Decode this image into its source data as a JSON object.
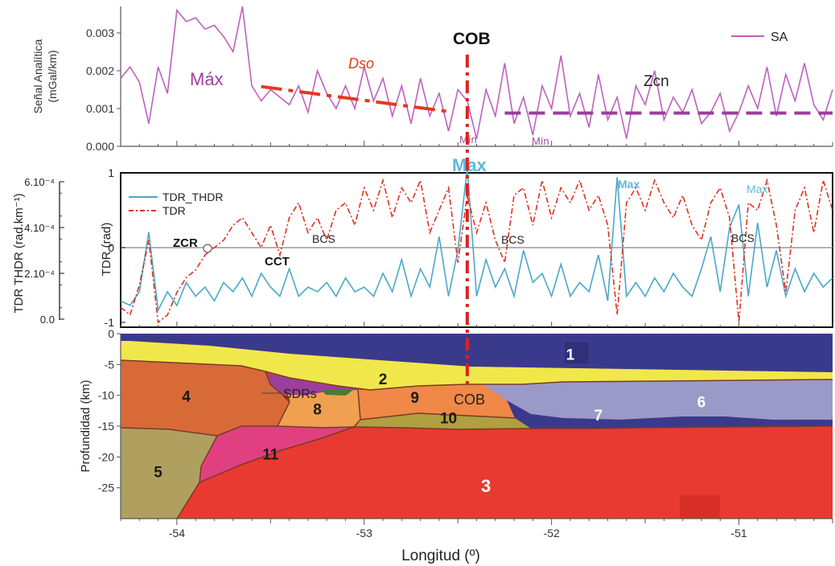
{
  "figure": {
    "xlabel": "Longitud (º)",
    "x_ticks": [
      "-54",
      "-53",
      "-52",
      "-51"
    ]
  },
  "colors": {
    "sa": "#c060c0",
    "tdr": "#e03020",
    "thdr": "#4aa8c8",
    "cob_line": "#e02020",
    "dso": "#e03a20",
    "zcn": "#9a3f9a",
    "max_text": "#60b8d8",
    "min_text": "#9a50a0"
  },
  "panel_sa": {
    "ylabel_line1": "Señal Analítica",
    "ylabel_line2": "(mGal/km)",
    "y_ticks": [
      "0.000",
      "0.001",
      "0.002",
      "0.003"
    ],
    "legend": "SA",
    "labels": {
      "max": "Máx",
      "dso": "Dso",
      "cob": "COB",
      "zcn": "Zcn",
      "min1": "Mín",
      "min2": "Mín"
    }
  },
  "panel_tdr": {
    "ylabel_right": "TDR (rad)",
    "ylabel_left": "TDR  THDR (rad.km⁻¹)",
    "y_ticks_right": [
      "1",
      "0",
      "-1"
    ],
    "y_ticks_left": [
      "6.10⁻⁴",
      "4.10⁻⁴",
      "2.10⁻⁴",
      "0.0"
    ],
    "legend": [
      "TDR_THDR",
      "TDR"
    ],
    "labels": {
      "max_top": "Max",
      "max_2": "Max",
      "max_3": "Max",
      "zcr": "ZCR",
      "cct": "CCT",
      "bcs1": "BCS",
      "bcs2": "BCS",
      "bcs3": "BCS"
    }
  },
  "panel_depth": {
    "ylabel": "Profundidad (km)",
    "y_ticks": [
      "0",
      "-5",
      "-10",
      "-15",
      "-20",
      "-25"
    ],
    "units": [
      "1",
      "2",
      "3",
      "4",
      "5",
      "6",
      "7",
      "8",
      "9",
      "10",
      "11"
    ],
    "labels": {
      "sdrs": "SDRs",
      "cob": "COB"
    },
    "unit_colors": {
      "1": "#3a3a8c",
      "2": "#f0e84a",
      "3": "#e83a30",
      "4": "#d86a38",
      "5": "#b0a060",
      "6": "#9a9ac8",
      "7": "#3a3a8c",
      "8": "#f0a050",
      "9": "#f08848",
      "10": "#b0a040",
      "11": "#e04080"
    }
  },
  "chart_data": [
    {
      "type": "line",
      "title": "",
      "xlabel": "Longitud (º)",
      "ylabel": "Señal Analítica (mGal/km)",
      "xlim": [
        -54.3,
        -50.5
      ],
      "ylim": [
        0.0,
        0.0037
      ],
      "series": [
        {
          "name": "SA",
          "x": [
            -54.3,
            -54.25,
            -54.2,
            -54.15,
            -54.1,
            -54.05,
            -54.0,
            -53.95,
            -53.9,
            -53.85,
            -53.8,
            -53.75,
            -53.7,
            -53.65,
            -53.6,
            -53.55,
            -53.5,
            -53.45,
            -53.4,
            -53.35,
            -53.3,
            -53.25,
            -53.2,
            -53.15,
            -53.1,
            -53.05,
            -53.0,
            -52.95,
            -52.9,
            -52.85,
            -52.8,
            -52.75,
            -52.7,
            -52.65,
            -52.6,
            -52.55,
            -52.5,
            -52.45,
            -52.4,
            -52.35,
            -52.3,
            -52.25,
            -52.2,
            -52.15,
            -52.1,
            -52.05,
            -52.0,
            -51.95,
            -51.9,
            -51.85,
            -51.8,
            -51.75,
            -51.7,
            -51.65,
            -51.6,
            -51.55,
            -51.5,
            -51.45,
            -51.4,
            -51.35,
            -51.3,
            -51.25,
            -51.2,
            -51.15,
            -51.1,
            -51.05,
            -51.0,
            -50.95,
            -50.9,
            -50.85,
            -50.8,
            -50.75,
            -50.7,
            -50.65,
            -50.6,
            -50.55,
            -50.5
          ],
          "values": [
            0.0018,
            0.0021,
            0.0017,
            0.0006,
            0.0021,
            0.0014,
            0.0036,
            0.0033,
            0.0034,
            0.0031,
            0.0032,
            0.0029,
            0.0025,
            0.0037,
            0.0016,
            0.0012,
            0.0015,
            0.0013,
            0.0011,
            0.0016,
            0.0009,
            0.002,
            0.0014,
            0.001,
            0.0016,
            0.001,
            0.0021,
            0.0012,
            0.0018,
            0.0008,
            0.0016,
            0.0006,
            0.0018,
            0.0008,
            0.0014,
            0.0004,
            0.0015,
            0.0012,
            0.0002,
            0.0015,
            0.0008,
            0.0022,
            0.0006,
            0.0013,
            0.0003,
            0.0016,
            0.001,
            0.0024,
            0.0008,
            0.0014,
            0.0005,
            0.0019,
            0.0007,
            0.0013,
            0.0002,
            0.0016,
            0.0011,
            0.002,
            0.0007,
            0.0013,
            0.0009,
            0.0015,
            0.0006,
            0.0009,
            0.0014,
            0.0004,
            0.0009,
            0.0016,
            0.001,
            0.0021,
            0.0008,
            0.0019,
            0.0012,
            0.0022,
            0.0011,
            0.0007,
            0.0015
          ]
        }
      ],
      "annotations": [
        {
          "text": "Máx",
          "x": -53.9,
          "y": 0.0019
        },
        {
          "text": "Dso",
          "x": -52.9,
          "y": 0.0023
        },
        {
          "text": "COB",
          "x": -52.45,
          "y": 0.0031
        },
        {
          "text": "Zcn",
          "x": -51.8,
          "y": 0.0018
        },
        {
          "text": "Mín",
          "x": -52.45,
          "y": 0.0002
        },
        {
          "text": "Mín",
          "x": -52.05,
          "y": 0.0
        }
      ],
      "overlays": {
        "dso_line": {
          "x": [
            -53.55,
            -52.55
          ],
          "y": [
            0.00158,
            0.00092
          ]
        },
        "zcn_line": {
          "x": [
            -52.25,
            -50.5
          ],
          "y": [
            0.00088,
            0.00088
          ]
        },
        "cob_x": -52.45
      },
      "legend_position": "top-right",
      "grid": false
    },
    {
      "type": "line",
      "title": "",
      "xlabel": "Longitud (º)",
      "ylabel": "TDR (rad)",
      "ylabel_secondary": "TDR  THDR (rad.km⁻¹)",
      "xlim": [
        -54.3,
        -50.5
      ],
      "ylim": [
        -1.2,
        1.0
      ],
      "ylim_secondary": [
        0.0,
        0.00068
      ],
      "series": [
        {
          "name": "TDR_THDR",
          "axis": "secondary",
          "x": [
            -54.3,
            -54.25,
            -54.2,
            -54.15,
            -54.1,
            -54.05,
            -54.0,
            -53.95,
            -53.9,
            -53.85,
            -53.8,
            -53.75,
            -53.7,
            -53.65,
            -53.6,
            -53.55,
            -53.5,
            -53.45,
            -53.4,
            -53.35,
            -53.3,
            -53.25,
            -53.2,
            -53.15,
            -53.1,
            -53.05,
            -53.0,
            -52.95,
            -52.9,
            -52.85,
            -52.8,
            -52.75,
            -52.7,
            -52.65,
            -52.6,
            -52.55,
            -52.5,
            -52.45,
            -52.4,
            -52.35,
            -52.3,
            -52.25,
            -52.2,
            -52.15,
            -52.1,
            -52.05,
            -52.0,
            -51.95,
            -51.9,
            -51.85,
            -51.8,
            -51.75,
            -51.7,
            -51.65,
            -51.6,
            -51.55,
            -51.5,
            -51.45,
            -51.4,
            -51.35,
            -51.3,
            -51.25,
            -51.2,
            -51.15,
            -51.1,
            -51.05,
            -51.0,
            -50.95,
            -50.9,
            -50.85,
            -50.8,
            -50.75,
            -50.7,
            -50.65,
            -50.6,
            -50.55,
            -50.5
          ],
          "values": [
            8e-05,
            6e-05,
            0.00012,
            0.00038,
            4e-05,
            0.00012,
            6e-05,
            0.00016,
            0.0001,
            0.00014,
            8e-05,
            0.00016,
            0.00012,
            0.00018,
            0.0001,
            0.0002,
            0.00014,
            0.0001,
            0.00022,
            0.0001,
            0.00014,
            0.00012,
            0.00016,
            0.0001,
            0.00018,
            0.00012,
            0.00014,
            0.0001,
            0.0002,
            0.00012,
            0.00026,
            0.0001,
            0.00022,
            0.00014,
            0.00036,
            0.0001,
            0.0003,
            0.00066,
            0.0001,
            0.00026,
            0.00014,
            0.00022,
            0.0001,
            0.0003,
            0.00016,
            0.0002,
            0.0001,
            0.00024,
            0.0001,
            0.00016,
            0.00012,
            0.00028,
            8e-05,
            0.00062,
            0.0001,
            0.00016,
            0.0001,
            0.00018,
            0.00012,
            0.0002,
            0.00014,
            0.0001,
            0.00022,
            0.00036,
            0.00012,
            0.0004,
            0.0005,
            0.0001,
            0.00042,
            0.00014,
            0.0003,
            0.0001,
            0.00022,
            0.00012,
            0.0002,
            0.00014,
            0.00018
          ]
        },
        {
          "name": "TDR",
          "axis": "primary",
          "x": [
            -54.3,
            -54.25,
            -54.2,
            -54.15,
            -54.1,
            -54.05,
            -54.0,
            -53.95,
            -53.9,
            -53.85,
            -53.8,
            -53.75,
            -53.7,
            -53.65,
            -53.6,
            -53.55,
            -53.5,
            -53.45,
            -53.4,
            -53.35,
            -53.3,
            -53.25,
            -53.2,
            -53.15,
            -53.1,
            -53.05,
            -53.0,
            -52.95,
            -52.9,
            -52.85,
            -52.8,
            -52.75,
            -52.7,
            -52.65,
            -52.6,
            -52.55,
            -52.5,
            -52.45,
            -52.4,
            -52.35,
            -52.3,
            -52.25,
            -52.2,
            -52.15,
            -52.1,
            -52.05,
            -52.0,
            -51.95,
            -51.9,
            -51.85,
            -51.8,
            -51.75,
            -51.7,
            -51.65,
            -51.6,
            -51.55,
            -51.5,
            -51.45,
            -51.4,
            -51.35,
            -51.3,
            -51.25,
            -51.2,
            -51.15,
            -51.1,
            -51.05,
            -51.0,
            -50.95,
            -50.9,
            -50.85,
            -50.8,
            -50.75,
            -50.7,
            -50.65,
            -50.6,
            -50.55,
            -50.5
          ],
          "values": [
            -0.8,
            -0.9,
            -0.5,
            0.1,
            -1.0,
            -0.9,
            -0.6,
            -0.4,
            -0.3,
            -0.1,
            0.0,
            0.1,
            0.3,
            0.4,
            0.2,
            0.0,
            0.3,
            -0.1,
            0.4,
            0.6,
            0.2,
            0.4,
            0.1,
            0.5,
            0.6,
            0.3,
            0.8,
            0.5,
            0.9,
            0.4,
            0.8,
            0.6,
            0.9,
            0.2,
            0.5,
            0.8,
            -0.2,
            0.7,
            0.2,
            0.6,
            0.1,
            -0.2,
            0.7,
            0.8,
            0.3,
            0.9,
            0.4,
            0.8,
            0.6,
            0.9,
            0.5,
            0.7,
            0.3,
            -0.9,
            0.6,
            0.8,
            0.5,
            0.9,
            0.6,
            0.4,
            0.7,
            0.3,
            0.1,
            0.6,
            0.8,
            0.4,
            -1.0,
            0.6,
            0.5,
            0.9,
            0.3,
            -0.6,
            0.5,
            0.8,
            0.2,
            0.9,
            0.5
          ]
        }
      ],
      "annotations": [
        {
          "text": "Max",
          "x": -52.45,
          "y": 1.15
        },
        {
          "text": "Max",
          "x": -51.6,
          "y": 0.9
        },
        {
          "text": "Max",
          "x": -50.9,
          "y": 0.82
        },
        {
          "text": "ZCR",
          "x": -53.8,
          "y": 0.05
        },
        {
          "text": "CCT",
          "x": -53.35,
          "y": -0.15
        },
        {
          "text": "BCS",
          "x": -53.2,
          "y": 0.12
        },
        {
          "text": "BCS",
          "x": -52.2,
          "y": 0.1
        },
        {
          "text": "BCS",
          "x": -50.9,
          "y": 0.14
        }
      ],
      "legend_position": "top-left",
      "grid": false
    },
    {
      "type": "area",
      "title": "",
      "xlabel": "Longitud (º)",
      "ylabel": "Profundidad (km)",
      "xlim": [
        -54.3,
        -50.5
      ],
      "ylim": [
        -30,
        0
      ],
      "series": [
        {
          "name": "1",
          "label_at": [
            -51.9,
            -3.3
          ]
        },
        {
          "name": "2",
          "label_at": [
            -52.9,
            -7.3
          ]
        },
        {
          "name": "3",
          "label_at": [
            -52.35,
            -24.8
          ]
        },
        {
          "name": "4",
          "label_at": [
            -53.95,
            -10.1
          ]
        },
        {
          "name": "5",
          "label_at": [
            -54.1,
            -22.4
          ]
        },
        {
          "name": "6",
          "label_at": [
            -51.2,
            -11.0
          ]
        },
        {
          "name": "7",
          "label_at": [
            -51.75,
            -13.2
          ]
        },
        {
          "name": "8",
          "label_at": [
            -53.25,
            -12.2
          ]
        },
        {
          "name": "9",
          "label_at": [
            -52.73,
            -10.3
          ]
        },
        {
          "name": "10",
          "label_at": [
            -52.55,
            -13.6
          ]
        },
        {
          "name": "11",
          "label_at": [
            -53.5,
            -19.5
          ]
        }
      ],
      "annotations": [
        {
          "text": "SDRs",
          "x": -53.25,
          "y": -9.3
        },
        {
          "text": "COB",
          "x": -52.35,
          "y": -10.3
        }
      ],
      "grid": false
    }
  ]
}
